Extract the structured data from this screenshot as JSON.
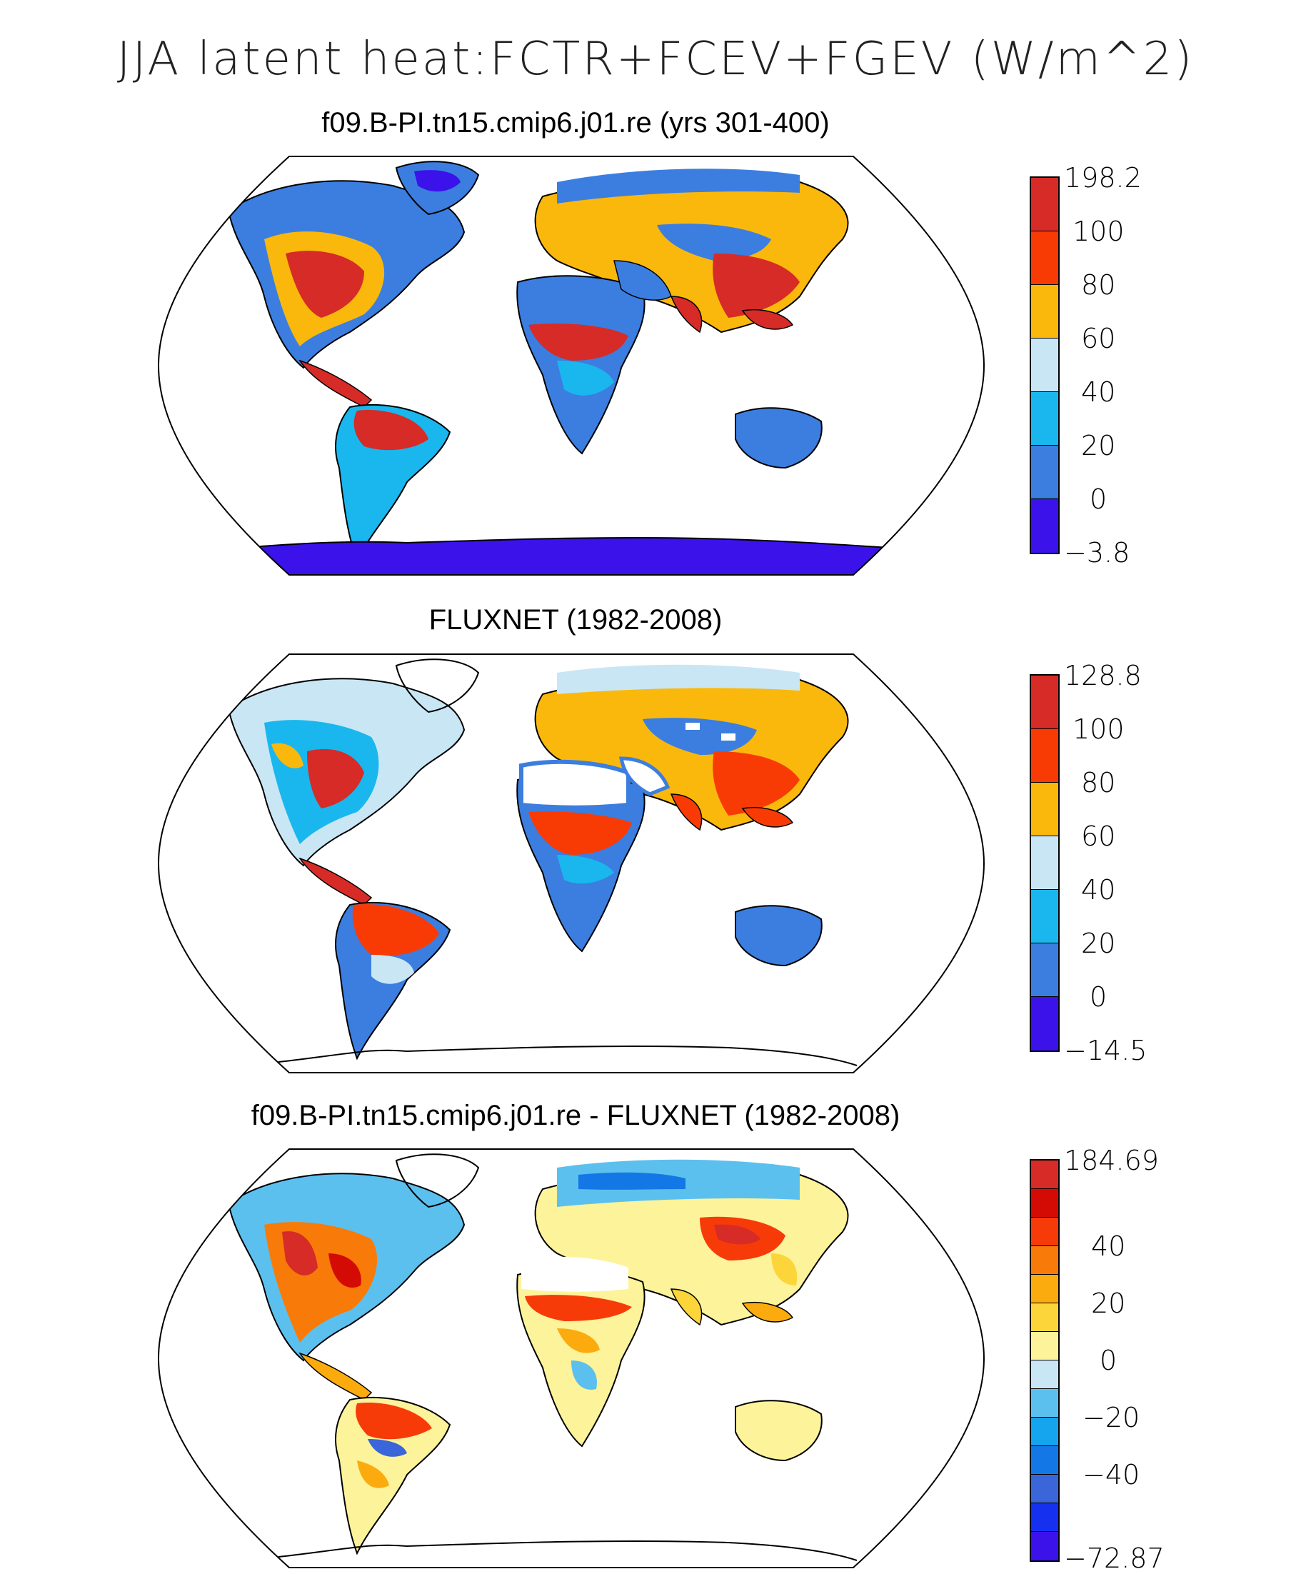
{
  "title": "JJA latent heat:FCTR+FCEV+FGEV (W/m^2)",
  "colors": {
    "deep_blue": "#3b12ea",
    "blue": "#3b7ee0",
    "light_blue": "#1ab7ee",
    "pale_blue": "#c9e6f5",
    "yellow_orange": "#fbb80c",
    "orange_red": "#f83b05",
    "red": "#d62b27"
  },
  "panels": [
    {
      "title": "f09.B-PI.tn15.cmip6.j01.re (yrs 301-400)",
      "colorbar": {
        "labels": [
          "198.2",
          "100",
          "80",
          "60",
          "40",
          "20",
          "0",
          "−3.8"
        ],
        "colors": [
          "#d62b27",
          "#f83b05",
          "#fbb80c",
          "#c9e6f5",
          "#1ab7ee",
          "#3b7ee0",
          "#3b12ea"
        ]
      }
    },
    {
      "title": "FLUXNET (1982-2008)",
      "colorbar": {
        "labels": [
          "128.8",
          "100",
          "80",
          "60",
          "40",
          "20",
          "0",
          "−14.5"
        ],
        "colors": [
          "#d62b27",
          "#f83b05",
          "#fbb80c",
          "#c9e6f5",
          "#1ab7ee",
          "#3b7ee0",
          "#3b12ea"
        ]
      }
    },
    {
      "title": "f09.B-PI.tn15.cmip6.j01.re - FLUXNET (1982-2008)",
      "colorbar": {
        "labels": [
          "184.69",
          "40",
          "20",
          "0",
          "−20",
          "−40",
          "−72.87"
        ],
        "colors": [
          "#d62b27",
          "#d40a05",
          "#f73b08",
          "#f87a08",
          "#fbab0e",
          "#fbd53a",
          "#fdf39a",
          "#c9e6f5",
          "#5cc0ef",
          "#14a5ee",
          "#1378e6",
          "#3a66d9",
          "#1530ee",
          "#3b12ea"
        ]
      }
    }
  ]
}
